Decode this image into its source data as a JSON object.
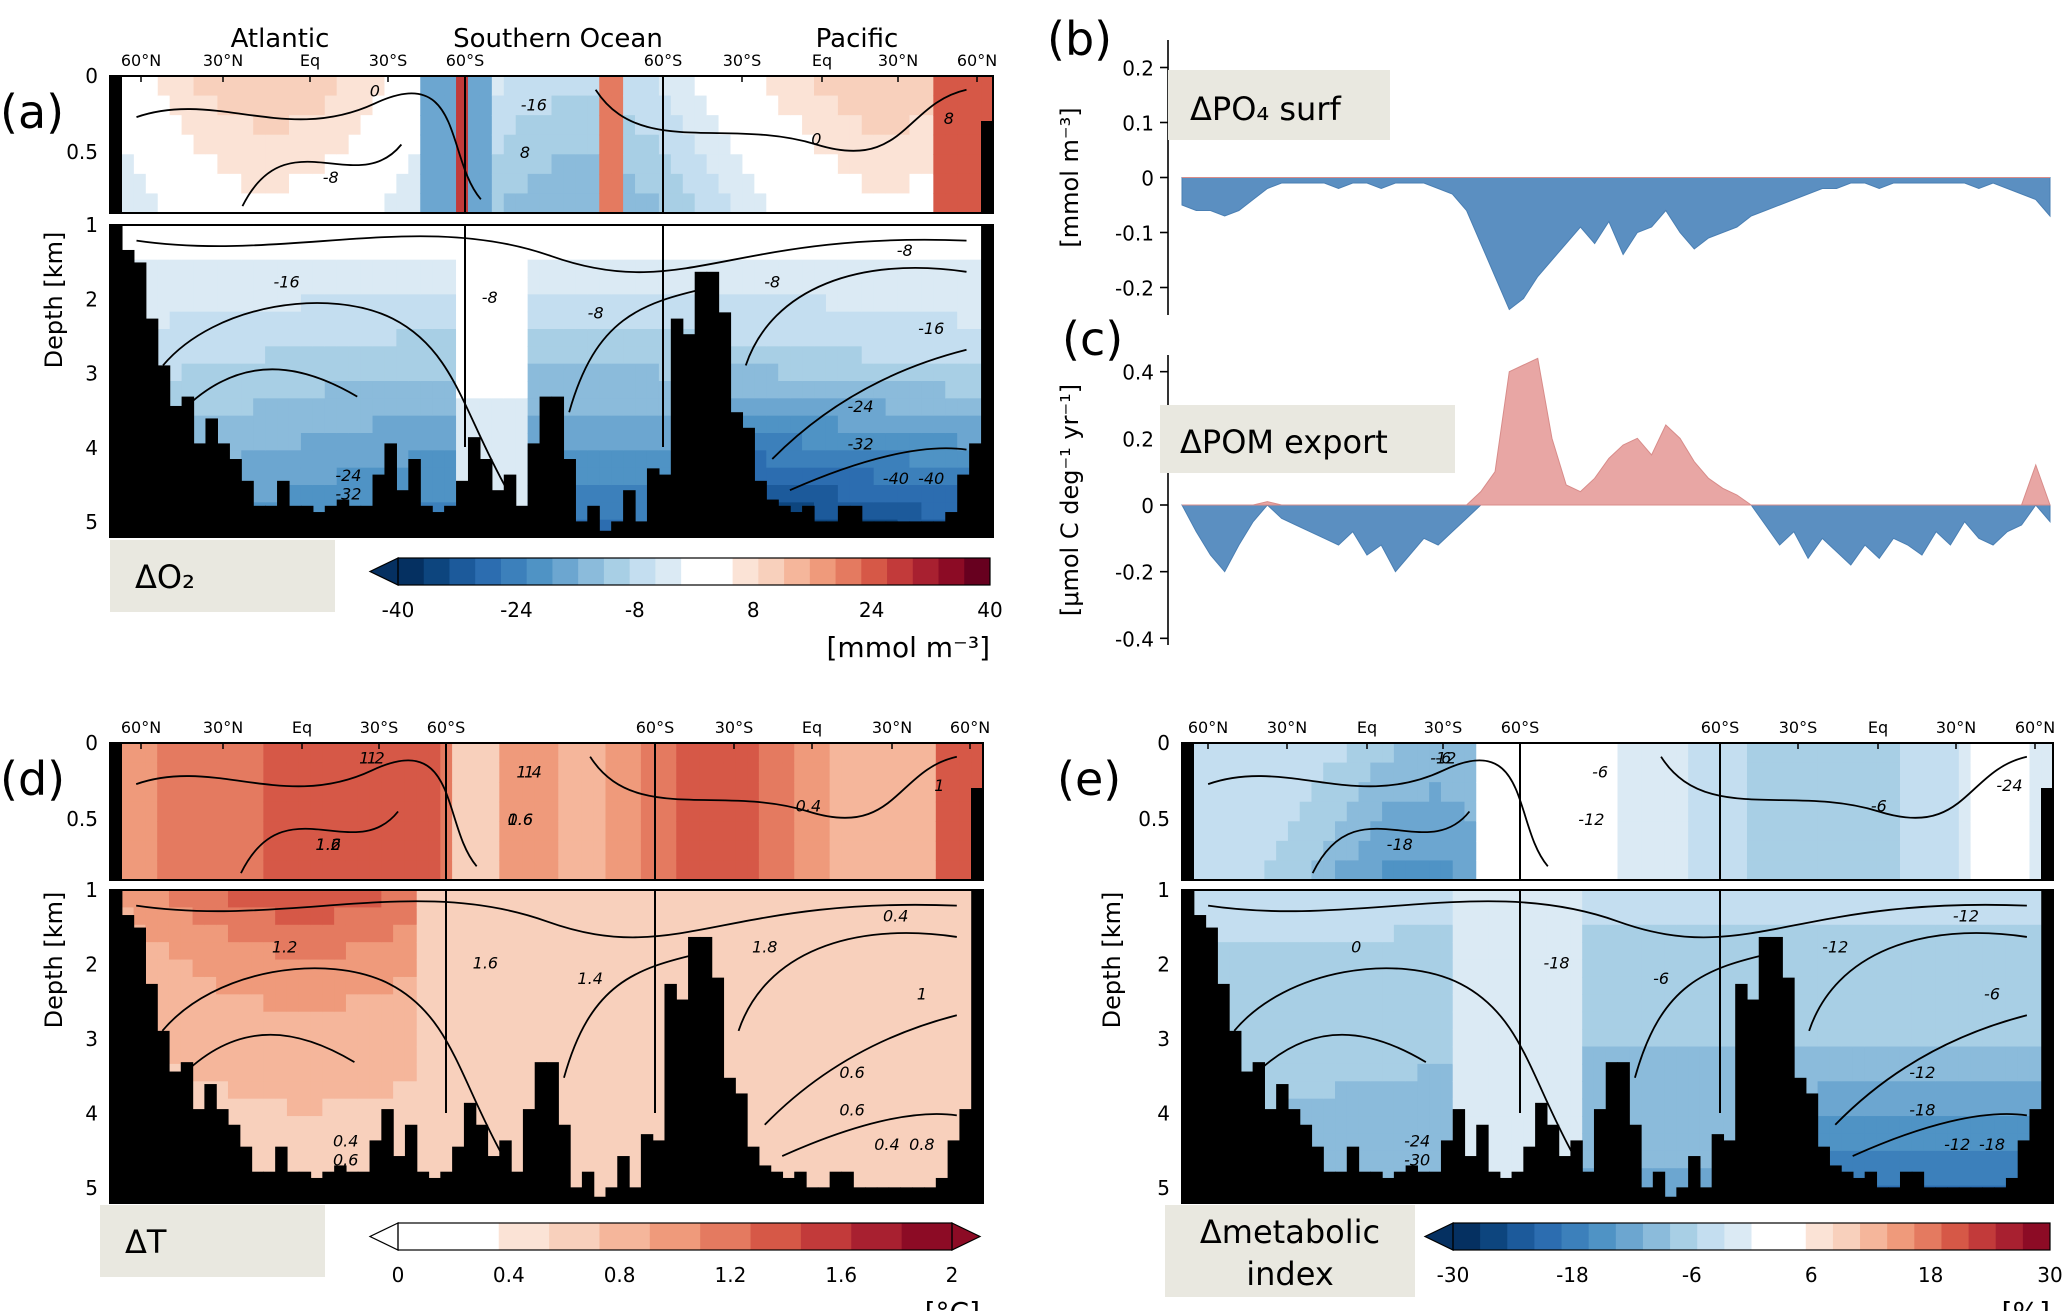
{
  "chart_data": [
    {
      "type": "heatmap",
      "panel_label": "(a)",
      "title": "",
      "box_label": "ΔO₂",
      "region_labels": [
        "Atlantic",
        "Southern Ocean",
        "Pacific"
      ],
      "x_ticks": [
        "60°N",
        "30°N",
        "Eq",
        "30°S",
        "60°S",
        "60°S",
        "30°S",
        "Eq",
        "30°N",
        "60°N"
      ],
      "ylabel": "Depth [km]",
      "y_ticks_top": [
        "0",
        "0.5"
      ],
      "y_ticks_bottom": [
        "1",
        "2",
        "3",
        "4",
        "5"
      ],
      "colorbar": {
        "ticks": [
          "-40",
          "-24",
          "-8",
          "8",
          "24",
          "40"
        ],
        "range": [
          -40,
          40
        ],
        "label": "[mmol m⁻³]",
        "extend": "min",
        "colors": [
          "#053061",
          "#0d457e",
          "#1c5a9b",
          "#2c6db0",
          "#3c80bb",
          "#4f93c5",
          "#6ca6d0",
          "#8bbbdb",
          "#a8cfe5",
          "#c4def0",
          "#dbeaf4",
          "#ffffff",
          "#ffffff",
          "#fbe3d6",
          "#f8d0bc",
          "#f5b69b",
          "#ef9a7b",
          "#e47a60",
          "#d65847",
          "#c23a3a",
          "#a82030",
          "#8c0b25",
          "#67001f"
        ]
      },
      "contour_labels": [
        "0",
        "-8",
        "-16",
        "8",
        "-8",
        "-16",
        "-8",
        "-8",
        "-16",
        "-8",
        "0",
        "-24",
        "-32",
        "-40",
        "-24",
        "-32",
        "-40",
        "8"
      ]
    },
    {
      "type": "area",
      "panel_label": "(b)",
      "box_label": "ΔPO₄ surf",
      "ylabel": "[mmol m⁻³]",
      "ylim": [
        -0.25,
        0.25
      ],
      "y_ticks": [
        "0.2",
        "0.1",
        "0",
        "-0.1",
        "-0.2"
      ],
      "series": [
        {
          "name": "ΔPO4 surf",
          "values": [
            -0.05,
            -0.06,
            -0.06,
            -0.07,
            -0.06,
            -0.04,
            -0.02,
            -0.01,
            -0.01,
            -0.01,
            -0.01,
            -0.02,
            -0.01,
            -0.01,
            -0.02,
            -0.01,
            -0.01,
            -0.01,
            -0.02,
            -0.03,
            -0.06,
            -0.12,
            -0.18,
            -0.24,
            -0.22,
            -0.18,
            -0.15,
            -0.12,
            -0.09,
            -0.12,
            -0.08,
            -0.14,
            -0.1,
            -0.09,
            -0.06,
            -0.1,
            -0.13,
            -0.11,
            -0.1,
            -0.09,
            -0.07,
            -0.06,
            -0.05,
            -0.04,
            -0.03,
            -0.02,
            -0.02,
            -0.01,
            -0.01,
            -0.02,
            -0.01,
            -0.01,
            -0.01,
            -0.01,
            -0.01,
            -0.01,
            -0.02,
            -0.01,
            -0.02,
            -0.03,
            -0.04,
            -0.07
          ]
        }
      ]
    },
    {
      "type": "area",
      "panel_label": "(c)",
      "box_label": "ΔPOM export",
      "ylabel": "[μmol C deg⁻¹ yr⁻¹]",
      "ylim": [
        -0.42,
        0.45
      ],
      "y_ticks": [
        "0.4",
        "0.2",
        "0",
        "-0.2",
        "-0.4"
      ],
      "series": [
        {
          "name": "ΔPOM export",
          "values": [
            0.0,
            -0.08,
            -0.15,
            -0.2,
            -0.12,
            -0.05,
            0.01,
            -0.04,
            -0.06,
            -0.08,
            -0.1,
            -0.12,
            -0.08,
            -0.15,
            -0.12,
            -0.2,
            -0.15,
            -0.1,
            -0.12,
            -0.08,
            -0.04,
            0.04,
            0.1,
            0.4,
            0.42,
            0.44,
            0.2,
            0.06,
            0.04,
            0.08,
            0.14,
            0.18,
            0.2,
            0.15,
            0.24,
            0.2,
            0.13,
            0.08,
            0.05,
            0.03,
            0.0,
            -0.06,
            -0.12,
            -0.08,
            -0.16,
            -0.1,
            -0.14,
            -0.18,
            -0.12,
            -0.16,
            -0.1,
            -0.12,
            -0.15,
            -0.08,
            -0.12,
            -0.05,
            -0.1,
            -0.12,
            -0.08,
            -0.06,
            0.12,
            -0.05
          ]
        }
      ]
    },
    {
      "type": "heatmap",
      "panel_label": "(d)",
      "box_label": "ΔT",
      "x_ticks": [
        "60°N",
        "30°N",
        "Eq",
        "30°S",
        "60°S",
        "60°S",
        "30°S",
        "Eq",
        "30°N",
        "60°N"
      ],
      "ylabel": "Depth [km]",
      "y_ticks_top": [
        "0",
        "0.5"
      ],
      "y_ticks_bottom": [
        "1",
        "2",
        "3",
        "4",
        "5"
      ],
      "colorbar": {
        "ticks": [
          "0",
          "0.4",
          "0.8",
          "1.2",
          "1.6",
          "2"
        ],
        "range": [
          0,
          2
        ],
        "label": "[°C]",
        "extend": "both",
        "colors": [
          "#ffffff",
          "#ffffff",
          "#fbe3d6",
          "#f8d0bc",
          "#f5b69b",
          "#ef9a7b",
          "#e47a60",
          "#d65847",
          "#c23a3a",
          "#a82030",
          "#8c0b25"
        ]
      },
      "contour_labels": [
        "1",
        "1.2",
        "1",
        "1.6",
        "1.6",
        "1.2",
        "1.4",
        "1.8",
        "1",
        "0.4",
        "0.4",
        "0.6",
        "0.6",
        "0.4",
        "0.4",
        "0.6",
        "0.8",
        "1",
        "1.2",
        "1.6",
        "1.4",
        "0.6"
      ]
    },
    {
      "type": "heatmap",
      "panel_label": "(e)",
      "box_label": "Δmetabolic index",
      "x_ticks": [
        "60°N",
        "30°N",
        "Eq",
        "30°S",
        "60°S",
        "60°S",
        "30°S",
        "Eq",
        "30°N",
        "60°N"
      ],
      "ylabel": "Depth [km]",
      "y_ticks_top": [
        "0",
        "0.5"
      ],
      "y_ticks_bottom": [
        "1",
        "2",
        "3",
        "4",
        "5"
      ],
      "colorbar": {
        "ticks": [
          "-30",
          "-18",
          "-6",
          "6",
          "18",
          "30"
        ],
        "range": [
          -30,
          30
        ],
        "label": "[%]",
        "extend": "min",
        "colors": [
          "#053061",
          "#0d457e",
          "#1c5a9b",
          "#2c6db0",
          "#3c80bb",
          "#4f93c5",
          "#6ca6d0",
          "#8bbbdb",
          "#a8cfe5",
          "#c4def0",
          "#dbeaf4",
          "#ffffff",
          "#ffffff",
          "#fbe3d6",
          "#f8d0bc",
          "#f5b69b",
          "#ef9a7b",
          "#e47a60",
          "#d65847",
          "#c23a3a",
          "#a82030",
          "#8c0b25"
        ]
      },
      "contour_labels": [
        "-12",
        "-18",
        "-6",
        "-12",
        "-18",
        "0",
        "-6",
        "-12",
        "-6",
        "-12",
        "-6",
        "-12",
        "-18",
        "-12",
        "-24",
        "-30",
        "-18",
        "-24",
        "-6"
      ]
    }
  ]
}
